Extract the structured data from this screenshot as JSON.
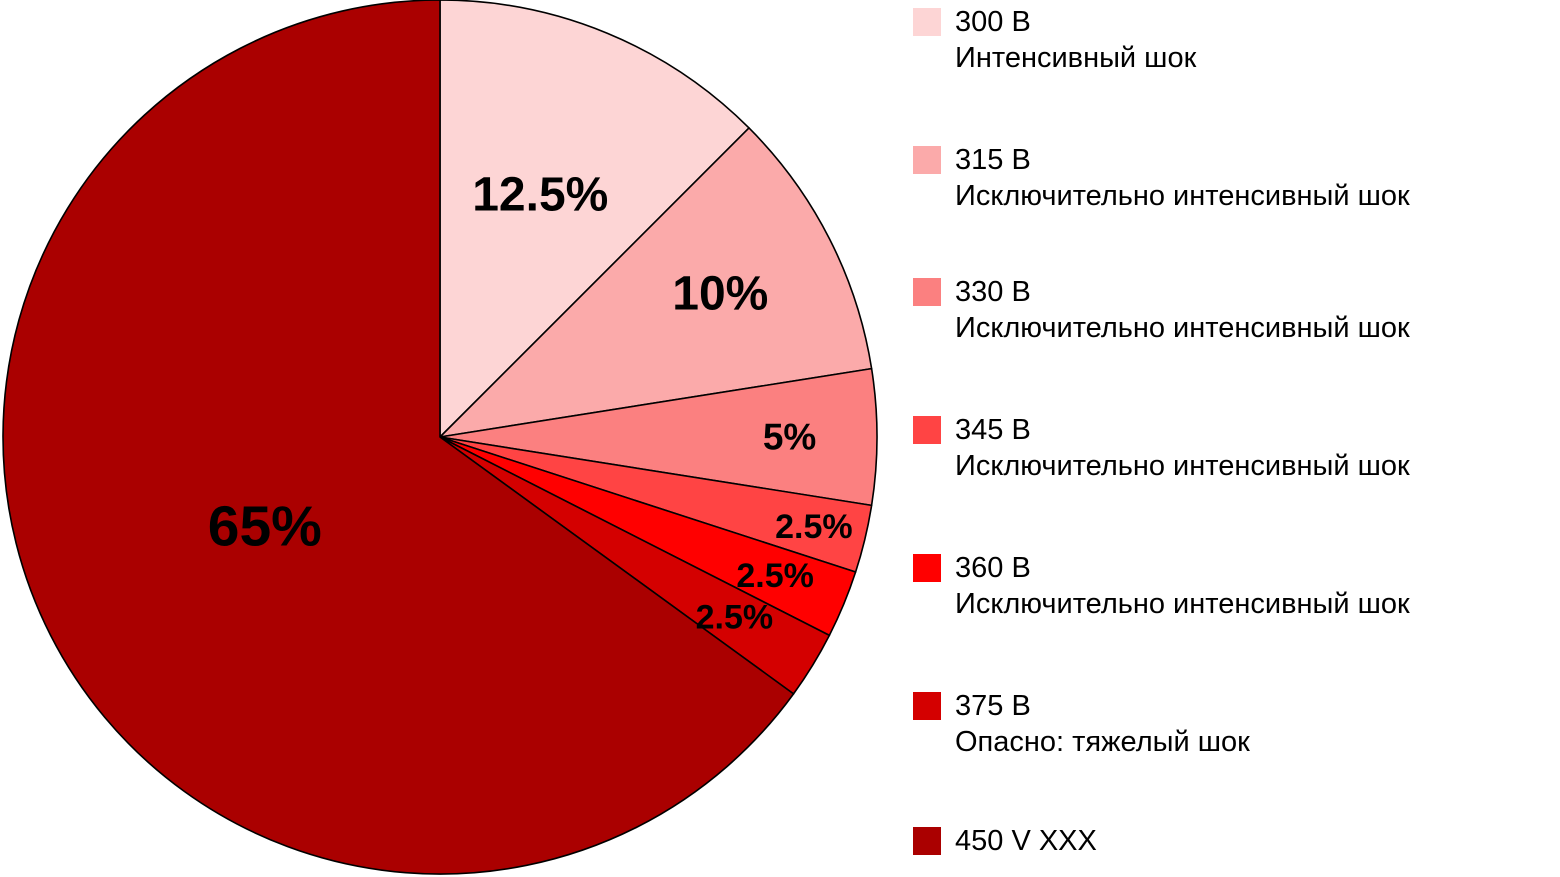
{
  "chart_data": {
    "type": "pie",
    "title": "",
    "start_angle_deg": 0,
    "direction": "clockwise",
    "slices": [
      {
        "label": "300 В",
        "sublabel": "Интенсивный шок",
        "value": 12.5,
        "display": "12.5%",
        "color": "#fdd5d5"
      },
      {
        "label": "315 В",
        "sublabel": "Исключительно интенсивный шок",
        "value": 10,
        "display": "10%",
        "color": "#fbaaaa"
      },
      {
        "label": "330 В",
        "sublabel": "Исключительно интенсивный шок",
        "value": 5,
        "display": "5%",
        "color": "#fb8080"
      },
      {
        "label": "345 В",
        "sublabel": "Исключительно интенсивный шок",
        "value": 2.5,
        "display": "2.5%",
        "color": "#ff4444"
      },
      {
        "label": "360 В",
        "sublabel": "Исключительно интенсивный шок",
        "value": 2.5,
        "display": "2.5%",
        "color": "#ff0000"
      },
      {
        "label": "375 В",
        "sublabel": "Опасно: тяжелый шок",
        "value": 2.5,
        "display": "2.5%",
        "color": "#d40000"
      },
      {
        "label": "450 V XXX",
        "sublabel": "",
        "value": 65,
        "display": "65%",
        "color": "#aa0000"
      }
    ],
    "legend_position": "right",
    "outline_color": "#000000"
  }
}
